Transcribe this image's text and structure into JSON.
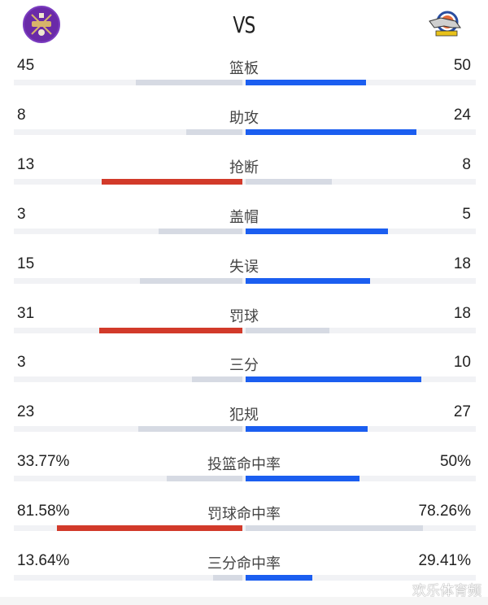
{
  "header": {
    "home_team_logo": "purple-crest-logo",
    "away_team_logo": "tiger-basketball-logo",
    "vs_label": "VS"
  },
  "colors": {
    "home_lead": "#d23a2a",
    "away_lead": "#1b5ef0",
    "trail": "#d6dae3",
    "track": "#f1f2f5"
  },
  "stats": [
    {
      "label": "篮板",
      "home": "45",
      "away": "50",
      "home_bar": 131,
      "away_bar": 148,
      "leader": "away"
    },
    {
      "label": "助攻",
      "home": "8",
      "away": "24",
      "home_bar": 69,
      "away_bar": 210,
      "leader": "away"
    },
    {
      "label": "抢断",
      "home": "13",
      "away": "8",
      "home_bar": 173,
      "away_bar": 106,
      "leader": "home"
    },
    {
      "label": "盖帽",
      "home": "3",
      "away": "5",
      "home_bar": 103,
      "away_bar": 175,
      "leader": "away"
    },
    {
      "label": "失误",
      "home": "15",
      "away": "18",
      "home_bar": 126,
      "away_bar": 153,
      "leader": "away"
    },
    {
      "label": "罚球",
      "home": "31",
      "away": "18",
      "home_bar": 176,
      "away_bar": 103,
      "leader": "home"
    },
    {
      "label": "三分",
      "home": "3",
      "away": "10",
      "home_bar": 62,
      "away_bar": 216,
      "leader": "away"
    },
    {
      "label": "犯规",
      "home": "23",
      "away": "27",
      "home_bar": 128,
      "away_bar": 150,
      "leader": "away"
    },
    {
      "label": "投篮命中率",
      "home": "33.77%",
      "away": "50%",
      "home_bar": 93,
      "away_bar": 140,
      "leader": "away"
    },
    {
      "label": "罚球命中率",
      "home": "81.58%",
      "away": "78.26%",
      "home_bar": 228,
      "away_bar": 218,
      "leader": "home"
    },
    {
      "label": "三分命中率",
      "home": "13.64%",
      "away": "29.41%",
      "home_bar": 36,
      "away_bar": 82,
      "leader": "away"
    }
  ],
  "watermark": "欢乐体育频"
}
